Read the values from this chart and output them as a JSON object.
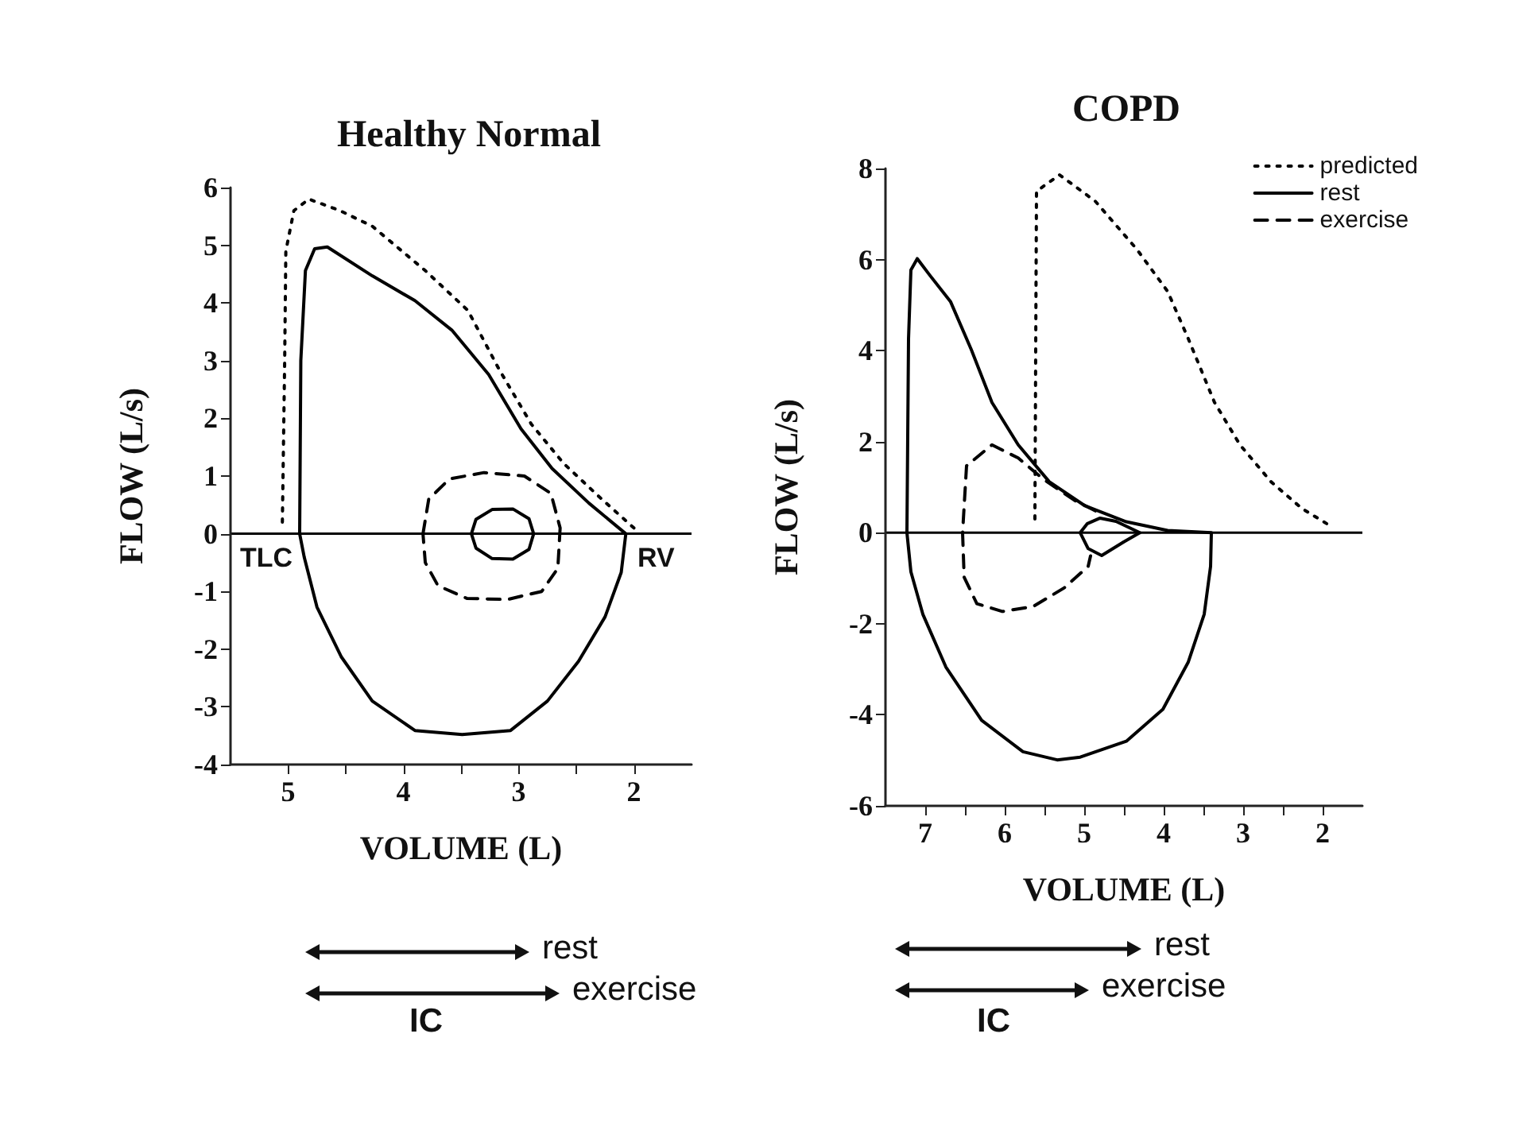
{
  "chart_data": [
    {
      "type": "line",
      "title": "Healthy Normal",
      "xlabel": "VOLUME (L)",
      "ylabel": "FLOW (L/s)",
      "xlim": [
        5.5,
        1.5
      ],
      "xticks": [
        5,
        {
          "value": 4.5,
          "label": null
        },
        4,
        {
          "value": 3.5,
          "label": null
        },
        3,
        {
          "value": 2.5,
          "label": null
        },
        2
      ],
      "ylim": [
        -4,
        6
      ],
      "yticks": [
        -4,
        -3,
        -2,
        -1,
        0,
        1,
        2,
        3,
        4,
        5,
        6
      ],
      "grid": false,
      "legend": false,
      "ref_lines": [
        {
          "axis": "y",
          "value": 0,
          "color": "#000000"
        }
      ],
      "series": [
        {
          "color": "#000000",
          "line_style": "dotted",
          "x": [
            5.05,
            5.03,
            5.02,
            4.95,
            4.82,
            4.55,
            4.27,
            3.81,
            3.44,
            3.17,
            2.89,
            2.61,
            2.29,
            2.0
          ],
          "values": [
            0.2,
            3.0,
            4.9,
            5.6,
            5.8,
            5.6,
            5.33,
            4.56,
            3.87,
            2.85,
            1.9,
            1.22,
            0.62,
            0.1
          ]
        },
        {
          "color": "#000000",
          "line_style": "solid",
          "x": [
            4.9,
            4.89,
            4.85,
            4.77,
            4.66,
            4.27,
            3.9,
            3.58,
            3.26,
            2.98,
            2.71,
            2.39,
            2.07,
            null,
            2.07,
            2.11,
            2.25,
            2.48,
            2.75,
            3.07,
            3.49,
            3.9,
            4.27,
            4.54,
            4.75,
            4.86,
            4.9
          ],
          "values": [
            0,
            3.0,
            4.56,
            4.94,
            4.97,
            4.47,
            4.04,
            3.53,
            2.76,
            1.82,
            1.13,
            0.53,
            0,
            null,
            0,
            -0.67,
            -1.44,
            -2.21,
            -2.9,
            -3.41,
            -3.48,
            -3.41,
            -2.9,
            -2.13,
            -1.27,
            -0.41,
            0
          ]
        },
        {
          "color": "#000000",
          "line_style": "solid",
          "x": [
            3.41,
            3.37,
            3.23,
            3.05,
            2.91,
            2.87,
            null,
            2.87,
            2.91,
            3.05,
            3.23,
            3.37,
            3.41
          ],
          "values": [
            0,
            0.25,
            0.42,
            0.43,
            0.26,
            0,
            null,
            0,
            -0.27,
            -0.44,
            -0.43,
            -0.25,
            0
          ]
        },
        {
          "color": "#000000",
          "line_style": "dashed",
          "x": [
            3.83,
            3.78,
            3.6,
            3.3,
            2.95,
            2.72,
            2.64,
            null,
            2.64,
            2.66,
            2.8,
            3.1,
            3.45,
            3.7,
            3.81,
            3.83
          ],
          "values": [
            0,
            0.6,
            0.95,
            1.06,
            1.0,
            0.7,
            0.1,
            null,
            0.1,
            -0.6,
            -1.0,
            -1.14,
            -1.12,
            -0.9,
            -0.5,
            0
          ]
        }
      ],
      "annotations": [
        {
          "text": "TLC",
          "x": 4.9,
          "y": 0
        },
        {
          "text": "RV",
          "x": 2.07,
          "y": 0
        },
        "rest",
        "exercise",
        "IC"
      ]
    },
    {
      "type": "line",
      "title": "COPD",
      "xlabel": "VOLUME (L)",
      "ylabel": "FLOW (L/s)",
      "xlim": [
        7.5,
        1.5
      ],
      "xticks": [
        7,
        {
          "value": 6.5,
          "label": null
        },
        6,
        {
          "value": 5.5,
          "label": null
        },
        5,
        {
          "value": 4.5,
          "label": null
        },
        4,
        {
          "value": 3.5,
          "label": null
        },
        3,
        {
          "value": 2.5,
          "label": null
        },
        2
      ],
      "ylim": [
        -6,
        8
      ],
      "yticks": [
        -6,
        -4,
        -2,
        0,
        2,
        4,
        6,
        8
      ],
      "grid": false,
      "legend": "top right",
      "ref_lines": [
        {
          "axis": "y",
          "value": 0,
          "color": "#000000"
        }
      ],
      "series": [
        {
          "name": "predicted",
          "color": "#000000",
          "line_style": "dotted",
          "x": [
            5.62,
            5.61,
            5.6,
            5.31,
            4.86,
            4.34,
            3.95,
            3.69,
            3.36,
            3.04,
            2.65,
            2.26,
            1.94
          ],
          "values": [
            0.3,
            4.0,
            7.5,
            7.86,
            7.28,
            6.23,
            5.3,
            4.26,
            2.86,
            1.93,
            1.12,
            0.53,
            0.19
          ]
        },
        {
          "color": "#000000",
          "line_style": "solid",
          "x": [
            7.23,
            7.21,
            7.18,
            7.1,
            6.94,
            6.68,
            6.42,
            6.16,
            5.83,
            5.44,
            4.99,
            4.47,
            3.95,
            3.4,
            null,
            3.4,
            3.41,
            3.49,
            3.69,
            4.01,
            4.47,
            5.05,
            5.34,
            5.77,
            6.29,
            6.74,
            7.03,
            7.18,
            7.23
          ],
          "values": [
            0,
            4.26,
            5.77,
            6.02,
            5.65,
            5.07,
            4.02,
            2.86,
            1.93,
            1.12,
            0.59,
            0.24,
            0.05,
            0,
            null,
            0,
            -0.74,
            -1.79,
            -2.84,
            -3.88,
            -4.58,
            -4.93,
            -4.99,
            -4.81,
            -4.12,
            -2.95,
            -1.79,
            -0.86,
            0
          ]
        },
        {
          "name": "rest",
          "color": "#000000",
          "line_style": "solid",
          "x": [
            5.05,
            4.96,
            4.8,
            4.6,
            4.3,
            null,
            4.3,
            4.5,
            4.78,
            4.95,
            5.05
          ],
          "values": [
            0,
            0.2,
            0.32,
            0.25,
            0,
            null,
            0,
            -0.2,
            -0.5,
            -0.35,
            0
          ]
        },
        {
          "name": "exercise",
          "color": "#000000",
          "line_style": "dashed",
          "x": [
            4.86,
            5.12,
            5.51,
            5.83,
            6.16,
            6.48,
            6.53,
            null,
            6.53,
            6.51,
            6.35,
            6.03,
            5.64,
            5.25,
            4.95,
            4.92
          ],
          "values": [
            0.48,
            0.71,
            1.17,
            1.64,
            1.93,
            1.47,
            0,
            null,
            0,
            -0.98,
            -1.56,
            -1.73,
            -1.62,
            -1.21,
            -0.74,
            -0.51
          ]
        }
      ],
      "annotations": [
        "rest",
        "exercise",
        "IC"
      ]
    }
  ]
}
